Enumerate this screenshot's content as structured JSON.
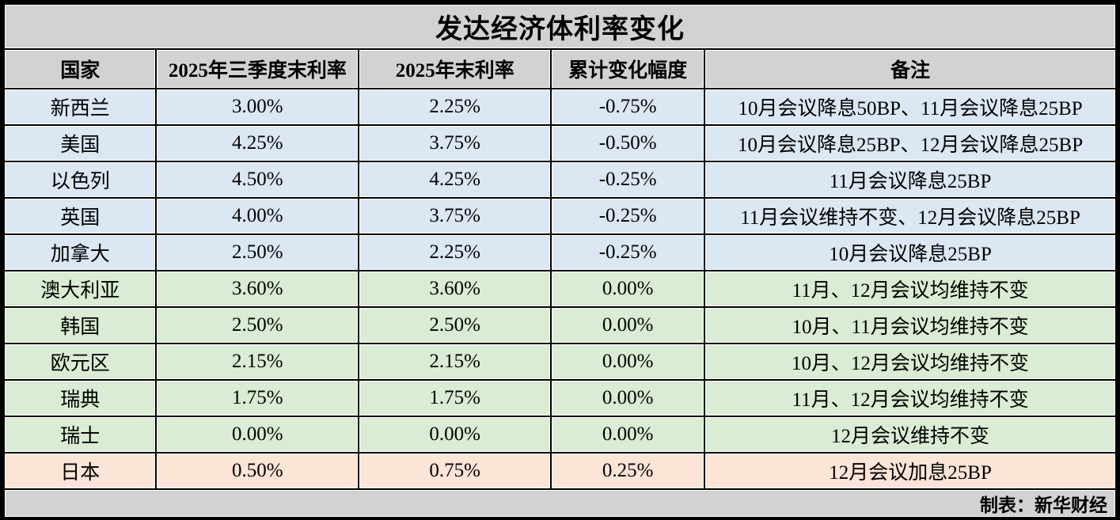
{
  "title": "发达经济体利率变化",
  "table": {
    "columns": [
      "国家",
      "2025年三季度末利率",
      "2025年末利率",
      "累计变化幅度",
      "备注"
    ],
    "rows": [
      {
        "country": "新西兰",
        "q3": "3.00%",
        "eoy": "2.25%",
        "change": "-0.75%",
        "note": "10月会议降息50BP、11月会议降息25BP",
        "tone": "cut"
      },
      {
        "country": "美国",
        "q3": "4.25%",
        "eoy": "3.75%",
        "change": "-0.50%",
        "note": "10月会议降息25BP、12月会议降息25BP",
        "tone": "cut"
      },
      {
        "country": "以色列",
        "q3": "4.50%",
        "eoy": "4.25%",
        "change": "-0.25%",
        "note": "11月会议降息25BP",
        "tone": "cut"
      },
      {
        "country": "英国",
        "q3": "4.00%",
        "eoy": "3.75%",
        "change": "-0.25%",
        "note": "11月会议维持不变、12月会议降息25BP",
        "tone": "cut"
      },
      {
        "country": "加拿大",
        "q3": "2.50%",
        "eoy": "2.25%",
        "change": "-0.25%",
        "note": "10月会议降息25BP",
        "tone": "cut"
      },
      {
        "country": "澳大利亚",
        "q3": "3.60%",
        "eoy": "3.60%",
        "change": "0.00%",
        "note": "11月、12月会议均维持不变",
        "tone": "hold"
      },
      {
        "country": "韩国",
        "q3": "2.50%",
        "eoy": "2.50%",
        "change": "0.00%",
        "note": "10月、11月会议均维持不变",
        "tone": "hold"
      },
      {
        "country": "欧元区",
        "q3": "2.15%",
        "eoy": "2.15%",
        "change": "0.00%",
        "note": "10月、12月会议均维持不变",
        "tone": "hold"
      },
      {
        "country": "瑞典",
        "q3": "1.75%",
        "eoy": "1.75%",
        "change": "0.00%",
        "note": "11月、12月会议均维持不变",
        "tone": "hold"
      },
      {
        "country": "瑞士",
        "q3": "0.00%",
        "eoy": "0.00%",
        "change": "0.00%",
        "note": "12月会议维持不变",
        "tone": "hold"
      },
      {
        "country": "日本",
        "q3": "0.50%",
        "eoy": "0.75%",
        "change": "0.25%",
        "note": "12月会议加息25BP",
        "tone": "hike"
      }
    ]
  },
  "footer": {
    "credit": "制表：新华财经"
  },
  "colors": {
    "cut_bg": "#dbe7f3",
    "hold_bg": "#daecd3",
    "hike_bg": "#fce4d6",
    "header_bg": "#d2d2d2",
    "border": "#000000"
  },
  "chart_data": {
    "type": "table",
    "title": "发达经济体利率变化",
    "columns": [
      "国家",
      "2025年三季度末利率",
      "2025年末利率",
      "累计变化幅度",
      "备注"
    ],
    "rows": [
      [
        "新西兰",
        "3.00%",
        "2.25%",
        "-0.75%",
        "10月会议降息50BP、11月会议降息25BP"
      ],
      [
        "美国",
        "4.25%",
        "3.75%",
        "-0.50%",
        "10月会议降息25BP、12月会议降息25BP"
      ],
      [
        "以色列",
        "4.50%",
        "4.25%",
        "-0.25%",
        "11月会议降息25BP"
      ],
      [
        "英国",
        "4.00%",
        "3.75%",
        "-0.25%",
        "11月会议维持不变、12月会议降息25BP"
      ],
      [
        "加拿大",
        "2.50%",
        "2.25%",
        "-0.25%",
        "10月会议降息25BP"
      ],
      [
        "澳大利亚",
        "3.60%",
        "3.60%",
        "0.00%",
        "11月、12月会议均维持不变"
      ],
      [
        "韩国",
        "2.50%",
        "2.50%",
        "0.00%",
        "10月、11月会议均维持不变"
      ],
      [
        "欧元区",
        "2.15%",
        "2.15%",
        "0.00%",
        "10月、12月会议均维持不变"
      ],
      [
        "瑞典",
        "1.75%",
        "1.75%",
        "0.00%",
        "11月、12月会议均维持不变"
      ],
      [
        "瑞士",
        "0.00%",
        "0.00%",
        "0.00%",
        "12月会议维持不变"
      ],
      [
        "日本",
        "0.50%",
        "0.75%",
        "0.25%",
        "12月会议加息25BP"
      ]
    ],
    "row_groups": [
      {
        "tone": "rate-cut",
        "color": "#dbe7f3",
        "row_indices": [
          0,
          1,
          2,
          3,
          4
        ]
      },
      {
        "tone": "rate-hold",
        "color": "#daecd3",
        "row_indices": [
          5,
          6,
          7,
          8,
          9
        ]
      },
      {
        "tone": "rate-hike",
        "color": "#fce4d6",
        "row_indices": [
          10
        ]
      }
    ],
    "credit": "制表：新华财经"
  }
}
